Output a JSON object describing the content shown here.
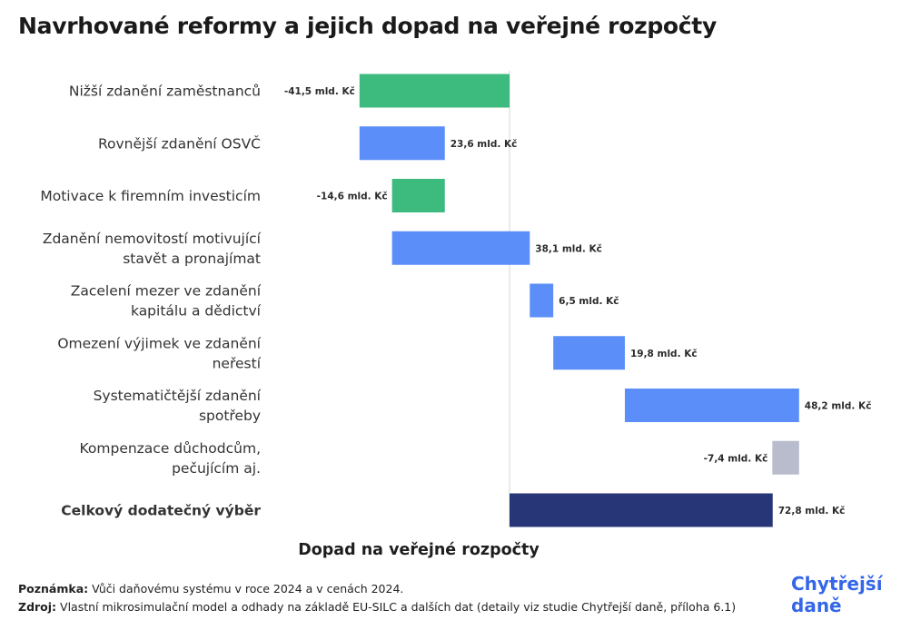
{
  "title": "Navrhované reformy a jejich dopad na veřejné rozpočty",
  "chart_data": {
    "type": "bar",
    "subtype": "waterfall-horizontal",
    "xlabel": "Dopad na veřejné rozpočty",
    "unit": "mld. Kč",
    "xlim": [
      -65,
      85
    ],
    "steps": [
      {
        "label": [
          "Nižší zdanění zaměstnanců"
        ],
        "value": -41.5,
        "value_label": "-41,5 mld. Kč",
        "color": "#3dba7e"
      },
      {
        "label": [
          "Rovnější zdanění OSVČ"
        ],
        "value": 23.6,
        "value_label": "23,6  mld. Kč",
        "color": "#5b8ef8"
      },
      {
        "label": [
          "Motivace k firemním investicím"
        ],
        "value": -14.6,
        "value_label": "-14,6 mld. Kč",
        "color": "#3dba7e"
      },
      {
        "label": [
          "Zdanění nemovitostí motivující",
          "stavět a pronajímat"
        ],
        "value": 38.1,
        "value_label": "38,1  mld. Kč",
        "color": "#5b8ef8"
      },
      {
        "label": [
          "Zacelení mezer ve zdanění",
          "kapitálu a dědictví"
        ],
        "value": 6.5,
        "value_label": "6,5 mld. Kč",
        "color": "#5b8ef8"
      },
      {
        "label": [
          "Omezení výjimek ve zdanění",
          "neřestí"
        ],
        "value": 19.8,
        "value_label": "19,8 mld. Kč",
        "color": "#5b8ef8"
      },
      {
        "label": [
          "Systematičtější zdanění",
          "spotřeby"
        ],
        "value": 48.2,
        "value_label": "48,2 mld. Kč",
        "color": "#5b8ef8"
      },
      {
        "label": [
          "Kompenzace důchodcům,",
          "pečujícím aj."
        ],
        "value": -7.4,
        "value_label": "-7,4 mld. Kč",
        "color": "#b9bccd"
      }
    ],
    "total": {
      "label": [
        "Celkový dodatečný výběr"
      ],
      "value": 72.8,
      "value_label": "72,8 mld. Kč",
      "color": "#263677"
    }
  },
  "notes": {
    "note_label": "Poznámka:",
    "note_text": " Vůči  daňovému systému v roce 2024 a v cenách 2024.",
    "source_label": "Zdroj:",
    "source_text": " Vlastní mikrosimulační model a odhady na základě EU-SILC a dalších dat (detaily viz studie Chytřejší daně, příloha 6.1)"
  },
  "logo": {
    "line1": "Chytřejší",
    "line2": "daně"
  }
}
